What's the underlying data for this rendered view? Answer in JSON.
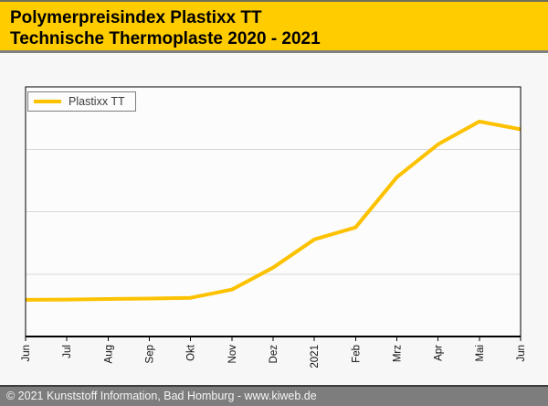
{
  "header": {
    "title_line1": "Polymerpreisindex Plastixx TT",
    "title_line2": "Technische Thermoplaste 2020 - 2021"
  },
  "legend": {
    "label": "Plastixx TT"
  },
  "chart_data": {
    "type": "line",
    "title": "Polymerpreisindex Plastixx TT — Technische Thermoplaste 2020 - 2021",
    "categories": [
      "Jun",
      "Jul",
      "Aug",
      "Sep",
      "Okt",
      "Nov",
      "Dez",
      "2021",
      "Feb",
      "Mrz",
      "Apr",
      "Mai",
      "Jun"
    ],
    "series": [
      {
        "name": "Plastixx TT",
        "color": "#FCC200",
        "values": [
          14.7,
          14.8,
          15.0,
          15.2,
          15.5,
          18.8,
          27.6,
          38.9,
          43.7,
          63.8,
          77.0,
          86.1,
          83.0
        ]
      }
    ],
    "y_unit": "percent of plot height (y-axis shows no tick labels in the image)",
    "ylim": [
      0,
      100
    ],
    "gridlines_y": [
      25,
      50,
      75
    ],
    "grid": "horizontal only",
    "legend_position": "top-left inside plot",
    "x_tick_label_rotation_deg": 90
  },
  "footer": {
    "text": "© 2021 Kunststoff Information, Bad Homburg - www.kiweb.de"
  },
  "colors": {
    "header_bg": "#FFCC00",
    "series_line": "#FCC200",
    "plot_bg": "#FCFCFC",
    "plot_border": "#000000",
    "gridline": "#D9D9D9",
    "page_bg": "#F7F7F7",
    "footer_bg": "#7D7D7D",
    "footer_text": "#F5F5F5"
  }
}
